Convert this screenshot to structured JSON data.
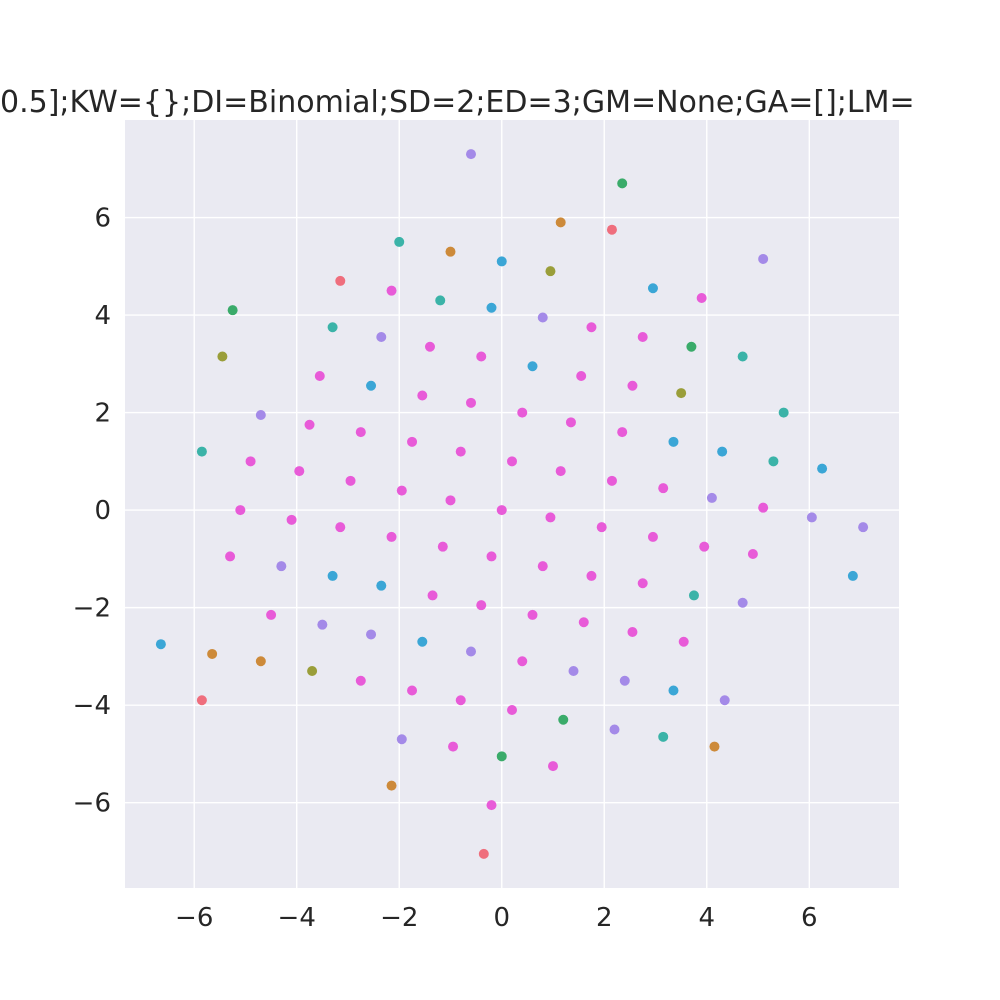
{
  "chart_data": {
    "type": "scatter",
    "title": "0.5];KW={};DI=Binomial;SD=2;ED=3;GM=None;GA=[];LM=",
    "xlabel": "",
    "ylabel": "",
    "xlim": [
      -7.35,
      7.75
    ],
    "ylim": [
      -7.75,
      8.0
    ],
    "xticks": [
      -6,
      -4,
      -2,
      0,
      2,
      4,
      6
    ],
    "yticks": [
      -6,
      -4,
      -2,
      0,
      2,
      4,
      6
    ],
    "xtick_labels": [
      "−6",
      "−4",
      "−2",
      "0",
      "2",
      "4",
      "6"
    ],
    "ytick_labels": [
      "−6",
      "−4",
      "−2",
      "0",
      "2",
      "4",
      "6"
    ],
    "grid": true,
    "colors": {
      "background": "#eaeaf2",
      "grid": "#ffffff",
      "text": "#262626",
      "magenta": "#e85bd8",
      "violet": "#a48ae8",
      "teal": "#3bb3a8",
      "blue": "#3ba6d6",
      "green": "#3aab6a",
      "orange": "#cd8a3a",
      "olive": "#9a9e3a",
      "red": "#ef6e7d"
    },
    "points": [
      {
        "x": -0.6,
        "y": 7.3,
        "c": "violet"
      },
      {
        "x": 2.35,
        "y": 6.7,
        "c": "green"
      },
      {
        "x": 1.15,
        "y": 5.9,
        "c": "orange"
      },
      {
        "x": 2.15,
        "y": 5.75,
        "c": "red"
      },
      {
        "x": -2.0,
        "y": 5.5,
        "c": "teal"
      },
      {
        "x": -1.0,
        "y": 5.3,
        "c": "orange"
      },
      {
        "x": 0.0,
        "y": 5.1,
        "c": "blue"
      },
      {
        "x": 0.95,
        "y": 4.9,
        "c": "olive"
      },
      {
        "x": 5.1,
        "y": 5.15,
        "c": "violet"
      },
      {
        "x": -3.15,
        "y": 4.7,
        "c": "red"
      },
      {
        "x": -2.15,
        "y": 4.5,
        "c": "magenta"
      },
      {
        "x": -1.2,
        "y": 4.3,
        "c": "teal"
      },
      {
        "x": -0.2,
        "y": 4.15,
        "c": "blue"
      },
      {
        "x": 0.8,
        "y": 3.95,
        "c": "violet"
      },
      {
        "x": 2.95,
        "y": 4.55,
        "c": "blue"
      },
      {
        "x": 3.9,
        "y": 4.35,
        "c": "magenta"
      },
      {
        "x": -5.25,
        "y": 4.1,
        "c": "green"
      },
      {
        "x": -3.3,
        "y": 3.75,
        "c": "teal"
      },
      {
        "x": -2.35,
        "y": 3.55,
        "c": "violet"
      },
      {
        "x": -1.4,
        "y": 3.35,
        "c": "magenta"
      },
      {
        "x": -0.4,
        "y": 3.15,
        "c": "magenta"
      },
      {
        "x": 0.6,
        "y": 2.95,
        "c": "blue"
      },
      {
        "x": 1.75,
        "y": 3.75,
        "c": "magenta"
      },
      {
        "x": 2.75,
        "y": 3.55,
        "c": "magenta"
      },
      {
        "x": 3.7,
        "y": 3.35,
        "c": "green"
      },
      {
        "x": 4.7,
        "y": 3.15,
        "c": "teal"
      },
      {
        "x": -5.45,
        "y": 3.15,
        "c": "olive"
      },
      {
        "x": -3.55,
        "y": 2.75,
        "c": "magenta"
      },
      {
        "x": -2.55,
        "y": 2.55,
        "c": "blue"
      },
      {
        "x": -1.55,
        "y": 2.35,
        "c": "magenta"
      },
      {
        "x": -0.6,
        "y": 2.2,
        "c": "magenta"
      },
      {
        "x": 0.4,
        "y": 2.0,
        "c": "magenta"
      },
      {
        "x": 1.55,
        "y": 2.75,
        "c": "magenta"
      },
      {
        "x": 2.55,
        "y": 2.55,
        "c": "magenta"
      },
      {
        "x": 3.5,
        "y": 2.4,
        "c": "olive"
      },
      {
        "x": 5.5,
        "y": 2.0,
        "c": "teal"
      },
      {
        "x": -4.7,
        "y": 1.95,
        "c": "violet"
      },
      {
        "x": -3.75,
        "y": 1.75,
        "c": "magenta"
      },
      {
        "x": -2.75,
        "y": 1.6,
        "c": "magenta"
      },
      {
        "x": -1.75,
        "y": 1.4,
        "c": "magenta"
      },
      {
        "x": -0.8,
        "y": 1.2,
        "c": "magenta"
      },
      {
        "x": 0.2,
        "y": 1.0,
        "c": "magenta"
      },
      {
        "x": 1.35,
        "y": 1.8,
        "c": "magenta"
      },
      {
        "x": 2.35,
        "y": 1.6,
        "c": "magenta"
      },
      {
        "x": 3.35,
        "y": 1.4,
        "c": "blue"
      },
      {
        "x": 4.3,
        "y": 1.2,
        "c": "blue"
      },
      {
        "x": 5.3,
        "y": 1.0,
        "c": "teal"
      },
      {
        "x": 6.25,
        "y": 0.85,
        "c": "blue"
      },
      {
        "x": -5.85,
        "y": 1.2,
        "c": "teal"
      },
      {
        "x": -4.9,
        "y": 1.0,
        "c": "magenta"
      },
      {
        "x": -3.95,
        "y": 0.8,
        "c": "magenta"
      },
      {
        "x": -2.95,
        "y": 0.6,
        "c": "magenta"
      },
      {
        "x": -1.95,
        "y": 0.4,
        "c": "magenta"
      },
      {
        "x": -1.0,
        "y": 0.2,
        "c": "magenta"
      },
      {
        "x": 0.0,
        "y": 0.0,
        "c": "magenta"
      },
      {
        "x": 1.15,
        "y": 0.8,
        "c": "magenta"
      },
      {
        "x": 2.15,
        "y": 0.6,
        "c": "magenta"
      },
      {
        "x": 3.15,
        "y": 0.45,
        "c": "magenta"
      },
      {
        "x": 4.1,
        "y": 0.25,
        "c": "violet"
      },
      {
        "x": 5.1,
        "y": 0.05,
        "c": "magenta"
      },
      {
        "x": 6.05,
        "y": -0.15,
        "c": "violet"
      },
      {
        "x": 7.05,
        "y": -0.35,
        "c": "violet"
      },
      {
        "x": -5.1,
        "y": 0.0,
        "c": "magenta"
      },
      {
        "x": -4.1,
        "y": -0.2,
        "c": "magenta"
      },
      {
        "x": -3.15,
        "y": -0.35,
        "c": "magenta"
      },
      {
        "x": -2.15,
        "y": -0.55,
        "c": "magenta"
      },
      {
        "x": -1.15,
        "y": -0.75,
        "c": "magenta"
      },
      {
        "x": -0.2,
        "y": -0.95,
        "c": "magenta"
      },
      {
        "x": 0.95,
        "y": -0.15,
        "c": "magenta"
      },
      {
        "x": 1.95,
        "y": -0.35,
        "c": "magenta"
      },
      {
        "x": 2.95,
        "y": -0.55,
        "c": "magenta"
      },
      {
        "x": 3.95,
        "y": -0.75,
        "c": "magenta"
      },
      {
        "x": 4.9,
        "y": -0.9,
        "c": "magenta"
      },
      {
        "x": 6.85,
        "y": -1.35,
        "c": "blue"
      },
      {
        "x": -5.3,
        "y": -0.95,
        "c": "magenta"
      },
      {
        "x": -4.3,
        "y": -1.15,
        "c": "violet"
      },
      {
        "x": -3.3,
        "y": -1.35,
        "c": "blue"
      },
      {
        "x": -2.35,
        "y": -1.55,
        "c": "blue"
      },
      {
        "x": -1.35,
        "y": -1.75,
        "c": "magenta"
      },
      {
        "x": -0.4,
        "y": -1.95,
        "c": "magenta"
      },
      {
        "x": 0.8,
        "y": -1.15,
        "c": "magenta"
      },
      {
        "x": 1.75,
        "y": -1.35,
        "c": "magenta"
      },
      {
        "x": 2.75,
        "y": -1.5,
        "c": "magenta"
      },
      {
        "x": 3.75,
        "y": -1.75,
        "c": "teal"
      },
      {
        "x": 4.7,
        "y": -1.9,
        "c": "violet"
      },
      {
        "x": -4.5,
        "y": -2.15,
        "c": "magenta"
      },
      {
        "x": -3.5,
        "y": -2.35,
        "c": "violet"
      },
      {
        "x": -2.55,
        "y": -2.55,
        "c": "violet"
      },
      {
        "x": -1.55,
        "y": -2.7,
        "c": "blue"
      },
      {
        "x": -0.6,
        "y": -2.9,
        "c": "violet"
      },
      {
        "x": 0.6,
        "y": -2.15,
        "c": "magenta"
      },
      {
        "x": 1.6,
        "y": -2.3,
        "c": "magenta"
      },
      {
        "x": 2.55,
        "y": -2.5,
        "c": "magenta"
      },
      {
        "x": 3.55,
        "y": -2.7,
        "c": "magenta"
      },
      {
        "x": -6.65,
        "y": -2.75,
        "c": "blue"
      },
      {
        "x": -5.65,
        "y": -2.95,
        "c": "orange"
      },
      {
        "x": -4.7,
        "y": -3.1,
        "c": "orange"
      },
      {
        "x": -3.7,
        "y": -3.3,
        "c": "olive"
      },
      {
        "x": -2.75,
        "y": -3.5,
        "c": "magenta"
      },
      {
        "x": -1.75,
        "y": -3.7,
        "c": "magenta"
      },
      {
        "x": -0.8,
        "y": -3.9,
        "c": "magenta"
      },
      {
        "x": 0.4,
        "y": -3.1,
        "c": "magenta"
      },
      {
        "x": 1.4,
        "y": -3.3,
        "c": "violet"
      },
      {
        "x": 2.4,
        "y": -3.5,
        "c": "violet"
      },
      {
        "x": 3.35,
        "y": -3.7,
        "c": "blue"
      },
      {
        "x": 4.35,
        "y": -3.9,
        "c": "violet"
      },
      {
        "x": -5.85,
        "y": -3.9,
        "c": "red"
      },
      {
        "x": 0.2,
        "y": -4.1,
        "c": "magenta"
      },
      {
        "x": 1.2,
        "y": -4.3,
        "c": "green"
      },
      {
        "x": 2.2,
        "y": -4.5,
        "c": "violet"
      },
      {
        "x": 3.15,
        "y": -4.65,
        "c": "teal"
      },
      {
        "x": 4.15,
        "y": -4.85,
        "c": "orange"
      },
      {
        "x": -1.95,
        "y": -4.7,
        "c": "violet"
      },
      {
        "x": -0.95,
        "y": -4.85,
        "c": "magenta"
      },
      {
        "x": 0.0,
        "y": -5.05,
        "c": "green"
      },
      {
        "x": 1.0,
        "y": -5.25,
        "c": "magenta"
      },
      {
        "x": -2.15,
        "y": -5.65,
        "c": "orange"
      },
      {
        "x": -0.2,
        "y": -6.05,
        "c": "magenta"
      },
      {
        "x": -0.35,
        "y": -7.05,
        "c": "red"
      }
    ]
  }
}
